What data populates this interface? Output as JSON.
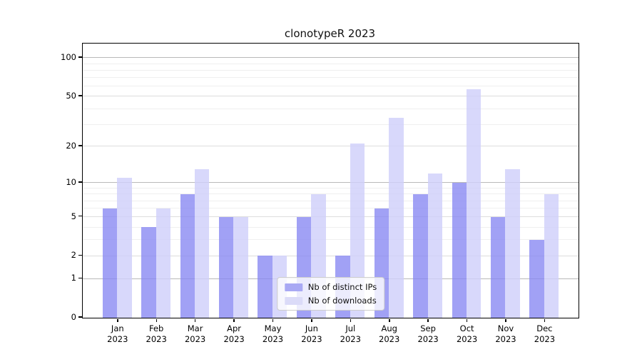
{
  "chart_data": {
    "type": "bar",
    "title": "clonotypeR 2023",
    "xlabel": "",
    "ylabel": "",
    "categories": [
      "Jan",
      "Feb",
      "Mar",
      "Apr",
      "May",
      "Jun",
      "Jul",
      "Aug",
      "Sep",
      "Oct",
      "Nov",
      "Dec"
    ],
    "category_year": "2023",
    "series": [
      {
        "name": "Nb of distinct IPs",
        "color": "rgba(134,134,242,0.78)",
        "legend_color": "#a9a9f4",
        "values": [
          6,
          4,
          8,
          5,
          2,
          5,
          2,
          6,
          8,
          10,
          5,
          3
        ]
      },
      {
        "name": "Nb of downloads",
        "color": "rgba(208,208,250,0.82)",
        "legend_color": "#dbdbf8",
        "values": [
          11,
          6,
          13,
          5,
          2,
          8,
          21,
          34,
          12,
          57,
          13,
          8
        ]
      }
    ],
    "y_scale": "log1p",
    "ylim": [
      0,
      129
    ],
    "y_major_ticks": [
      0,
      1,
      2,
      5,
      10,
      20,
      50,
      100
    ],
    "y_decade_gridlines": [
      1,
      10,
      100
    ],
    "y_labeled_gridlines": [
      2,
      5,
      20,
      50
    ],
    "y_minor_gridlines": [
      3,
      4,
      6,
      7,
      8,
      9,
      30,
      40,
      60,
      70,
      80,
      90
    ],
    "grid": "on",
    "legend_position": "lower center",
    "gridline_colors": {
      "decade": "#b9b9b9",
      "labeled": "#dddddd",
      "minor": "#efefef"
    }
  }
}
